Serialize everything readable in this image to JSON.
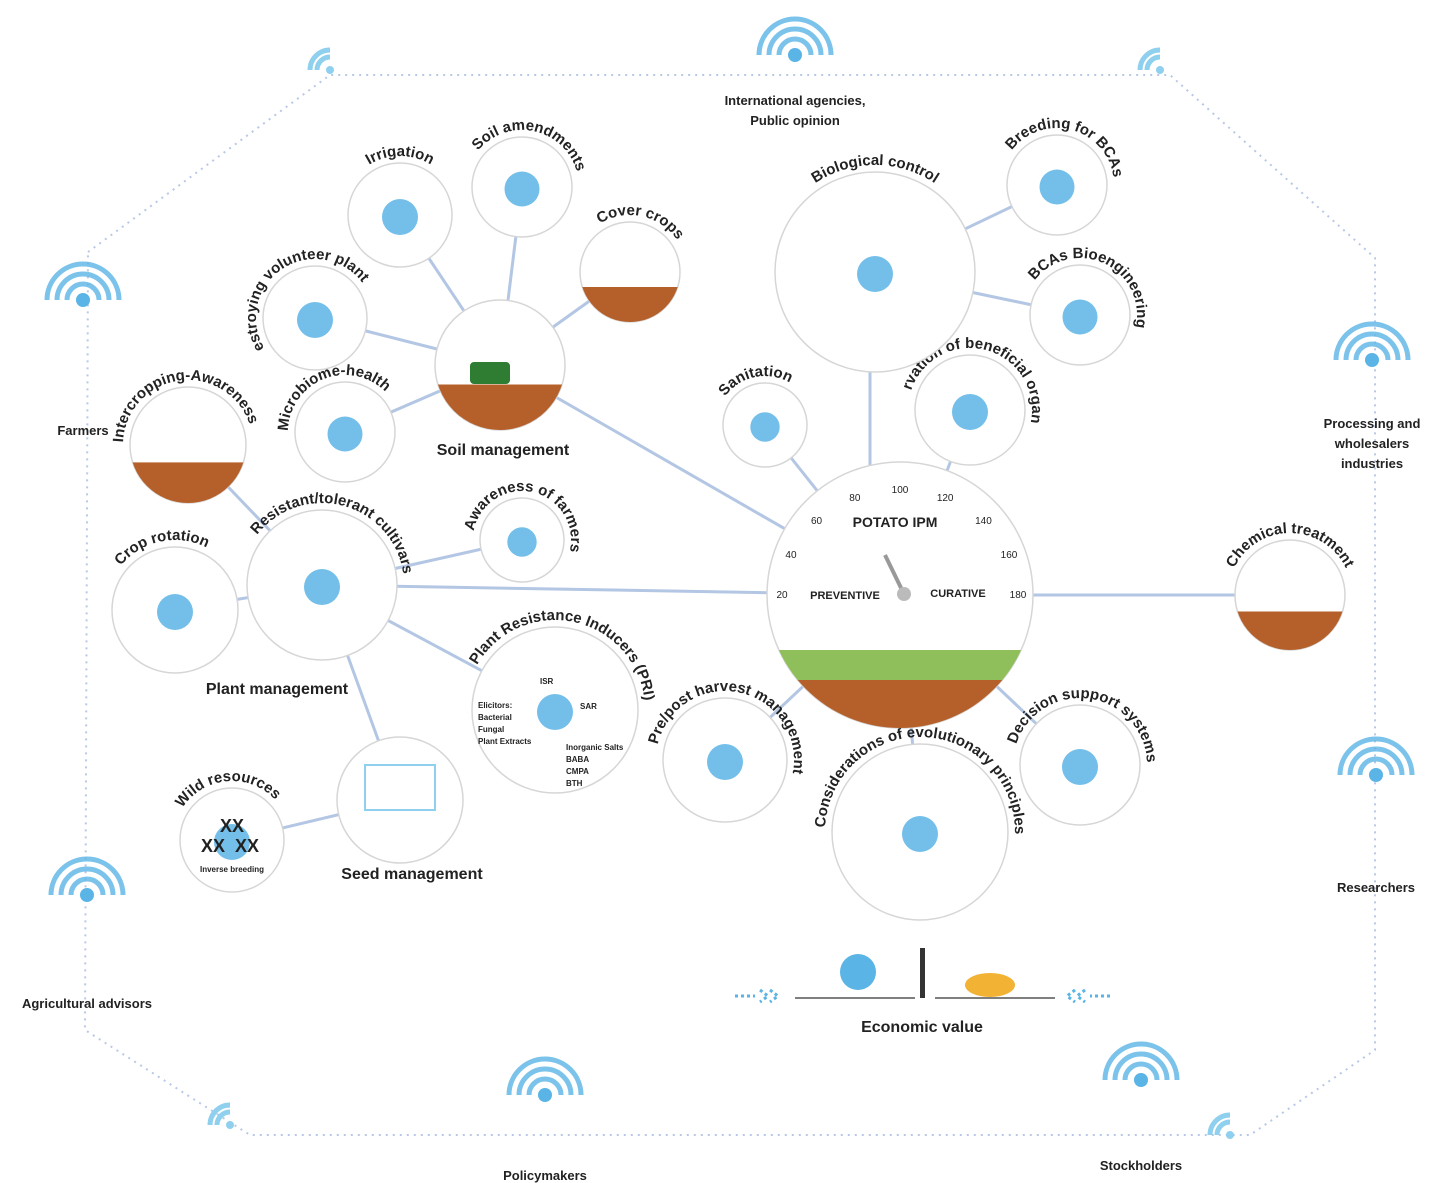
{
  "stakeholders": [
    {
      "lines": [
        "International agencies,",
        "Public opinion"
      ]
    },
    {
      "lines": [
        "Farmers"
      ]
    },
    {
      "lines": [
        "Processing and",
        "wholesalers",
        "industries"
      ]
    },
    {
      "lines": [
        "Researchers"
      ]
    },
    {
      "lines": [
        "Stockholders"
      ]
    },
    {
      "lines": [
        "Policymakers"
      ]
    },
    {
      "lines": [
        "Agricultural advisors"
      ]
    }
  ],
  "circles": [
    {
      "label": "Irrigation"
    },
    {
      "label": "Soil amendments"
    },
    {
      "label": "Cover crops"
    },
    {
      "label": "Destroying volunteer plants"
    },
    {
      "label": "Microbiome-health"
    },
    {
      "label": "Intercropping-Awareness"
    },
    {
      "label": "Resistant/tolerant cultivars"
    },
    {
      "label": "Crop rotation"
    },
    {
      "label": "Awareness of farmers"
    },
    {
      "label": "Plant Resistance Inducers (PRI)"
    },
    {
      "label": "Wild resources"
    },
    {
      "label": "Pre/post harvest management"
    },
    {
      "label": "Considerations of evolutionary principles"
    },
    {
      "label": "Decision support systems"
    },
    {
      "label": "Chemical treatment"
    },
    {
      "label": "Sanitation"
    },
    {
      "label": "Preservation of beneficial organisms"
    },
    {
      "label": "Biological control"
    },
    {
      "label": "Breeding for BCAs"
    },
    {
      "label": "BCAs Bioengineering"
    }
  ],
  "hub_labels": [
    "Soil management",
    "Plant management",
    "Seed management",
    "Economic value"
  ],
  "center": {
    "title": "POTATO IPM",
    "preventive": "PREVENTIVE",
    "curative": "CURATIVE",
    "gauge_ticks": [
      20,
      40,
      60,
      80,
      100,
      120,
      140,
      160,
      180
    ]
  },
  "pri_details": [
    "ISR",
    "SAR",
    "Elicitors:",
    "Bacterial",
    "Fungal",
    "Plant Extracts",
    "Inorganic Salts",
    "BABA",
    "CMPA",
    "BTH"
  ],
  "wild_resources_details": [
    "XX",
    "XX",
    "XX",
    "Inverse breeding"
  ]
}
